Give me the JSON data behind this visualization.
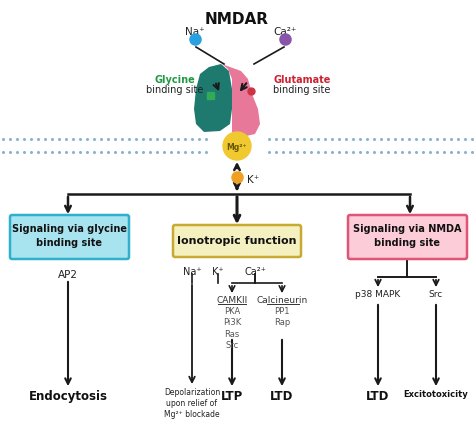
{
  "title": "NMDAR",
  "bg_color": "#ffffff",
  "membrane_color": "#c5dae8",
  "membrane_dot_color": "#8ab4cc",
  "receptor_left_color": "#1e7a6e",
  "receptor_right_color": "#e8789a",
  "mg_color": "#f0c830",
  "mg_text": "Mg²⁺",
  "k_color": "#f0a020",
  "k_text": "K⁺",
  "na_color": "#29a0e0",
  "na_text": "Na⁺",
  "ca_color": "#8855aa",
  "ca_text": "Ca²⁺",
  "glycine_color": "#229944",
  "glycine_sq_color": "#33aa55",
  "glutamate_color": "#cc2233",
  "glutamate_dot_color": "#cc3344",
  "box_glycine_bg": "#a8e4f0",
  "box_glycine_border": "#30b0cc",
  "box_ionotropic_bg": "#f5f0c0",
  "box_ionotropic_border": "#c8aa30",
  "box_nmda_bg": "#fcccd8",
  "box_nmda_border": "#e05575",
  "arrow_color": "#1a1a1a",
  "line_color": "#1a1a1a"
}
